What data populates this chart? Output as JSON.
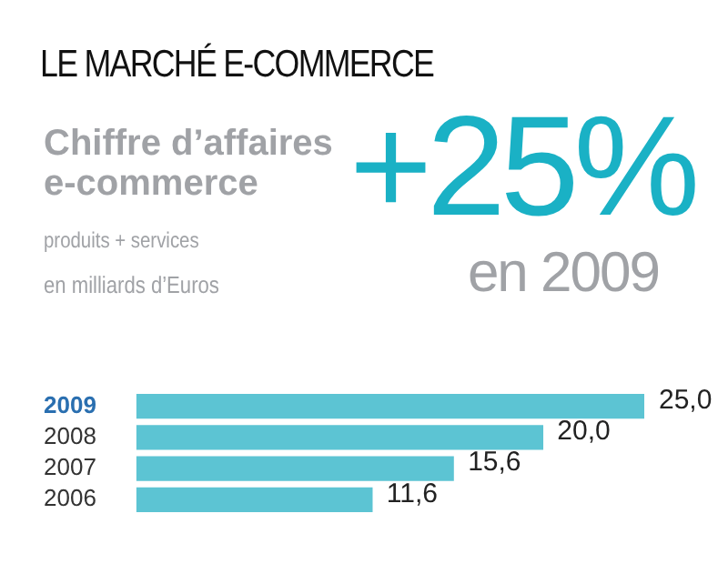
{
  "chart_data": {
    "type": "bar",
    "orientation": "horizontal",
    "title": "LE MARCHÉ E-COMMERCE",
    "subtitle": "Chiffre d’affaires e-commerce",
    "annotations": [
      "produits + services",
      "en milliards d’Euros",
      "+25%",
      "en 2009"
    ],
    "categories": [
      "2009",
      "2008",
      "2007",
      "2006"
    ],
    "values": [
      25,
      20,
      15.6,
      11.6
    ],
    "value_labels": [
      "25,0",
      "20,0",
      "15,6",
      "11,6"
    ],
    "color": "#5cc4d3"
  }
}
